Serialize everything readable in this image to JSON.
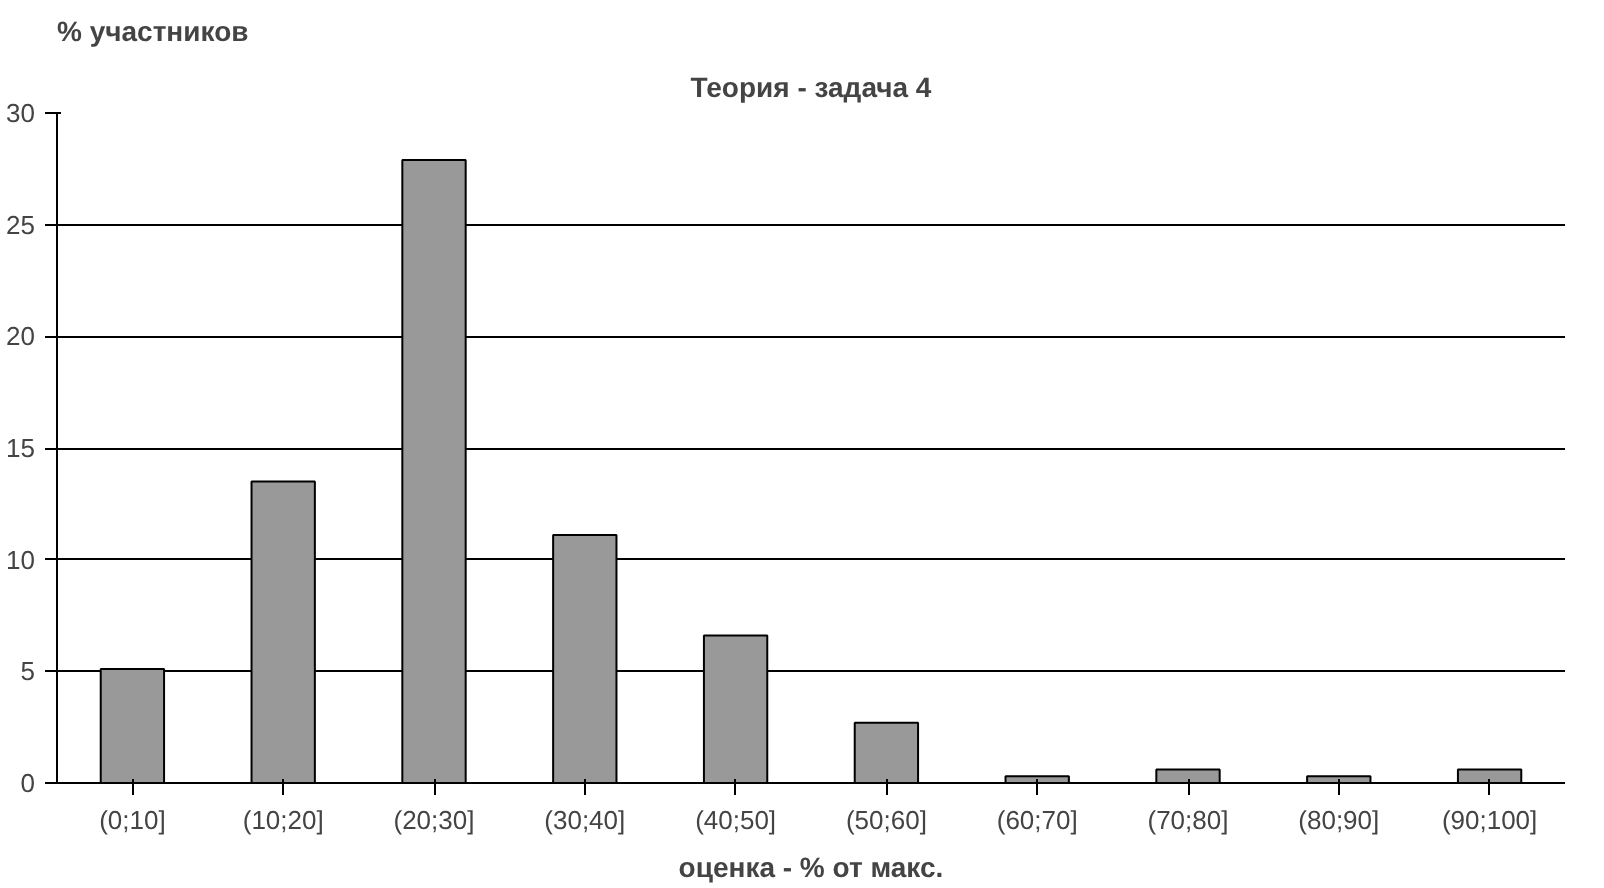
{
  "chart_data": {
    "type": "bar",
    "title": "Теория - задача 4",
    "xlabel": "оценка - % от макс.",
    "ylabel": "% участников",
    "categories": [
      "(0;10]",
      "(10;20]",
      "(20;30]",
      "(30;40]",
      "(40;50]",
      "(50;60]",
      "(60;70]",
      "(70;80]",
      "(80;90]",
      "(90;100]"
    ],
    "values": [
      5.1,
      13.5,
      27.9,
      11.1,
      6.6,
      2.7,
      0.3,
      0.6,
      0.3,
      0.6
    ],
    "color": "#999999",
    "ylim": [
      0,
      30
    ],
    "yticks": [
      0,
      5,
      10,
      15,
      20,
      25,
      30
    ],
    "grid": "y"
  }
}
